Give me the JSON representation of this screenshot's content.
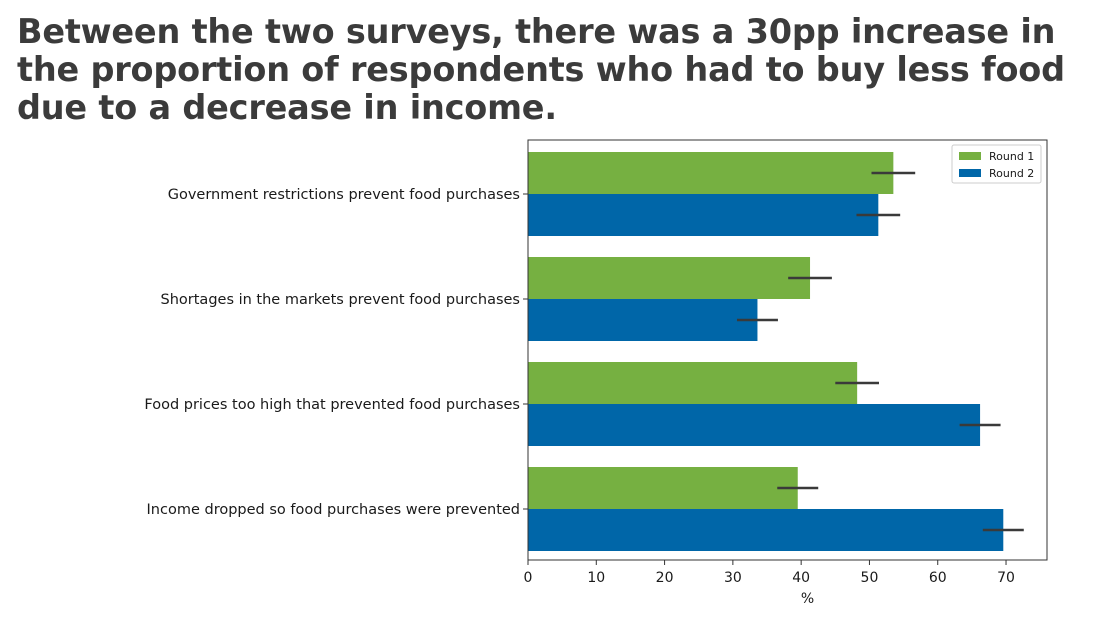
{
  "headline": "Between the two surveys, there was a 30pp increase in the proportion of respondents who had to buy less food due to a decrease in income.",
  "colors": {
    "round1": "#76b041",
    "round2": "#0066a8",
    "error_bar": "#3a3a3a",
    "axis": "#333333"
  },
  "chart_data": {
    "type": "bar",
    "orientation": "horizontal",
    "title": "Between the two surveys, there was a 30pp increase in the proportion of respondents who had to buy less food due to a decrease in income.",
    "xlabel": "%",
    "ylabel": "",
    "xlim": [
      0,
      76
    ],
    "xticks": [
      0,
      10,
      20,
      30,
      40,
      50,
      60,
      70
    ],
    "legend_placement": "top-right",
    "grid": false,
    "categories": [
      "Government restrictions prevent food purchases",
      "Shortages in the markets prevent food purchases",
      "Food prices too high that prevented food purchases",
      "Income dropped so food purchases were prevented"
    ],
    "series": [
      {
        "name": "Round 1",
        "values": [
          53.5,
          41.3,
          48.2,
          39.5
        ],
        "errors": [
          3.2,
          3.2,
          3.2,
          3.0
        ]
      },
      {
        "name": "Round 2",
        "values": [
          51.3,
          33.6,
          66.2,
          69.6
        ],
        "errors": [
          3.2,
          3.0,
          3.0,
          3.0
        ]
      }
    ]
  }
}
